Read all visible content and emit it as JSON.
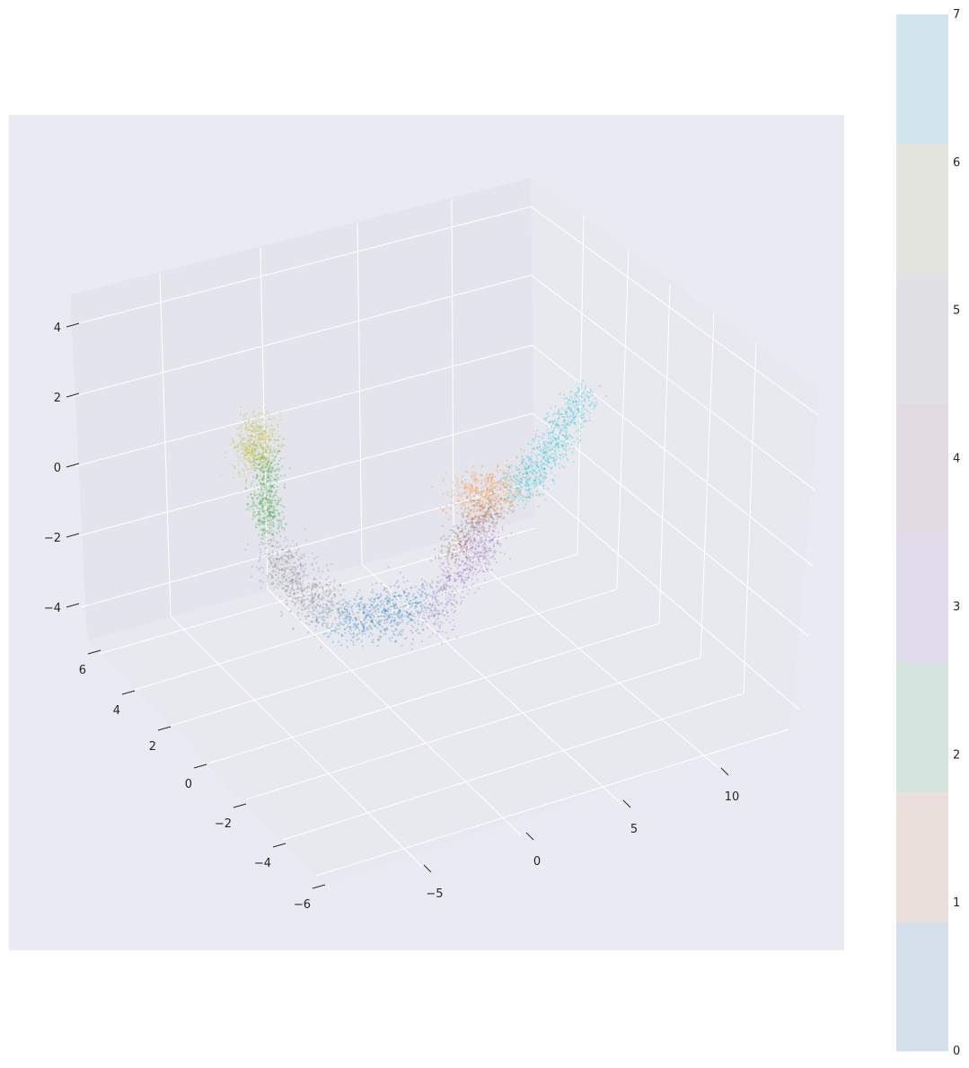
{
  "chart_data": {
    "type": "scatter",
    "projection": "3d",
    "title": "",
    "xlabel": "",
    "ylabel": "",
    "zlabel": "",
    "x_ticks": [
      -5,
      0,
      5,
      10
    ],
    "x_tick_labels": [
      "−5",
      "0",
      "5",
      "10"
    ],
    "y_ticks": [
      -6,
      -4,
      -2,
      0,
      2,
      4,
      6
    ],
    "y_tick_labels": [
      "−6",
      "−4",
      "−2",
      "0",
      "2",
      "4",
      "6"
    ],
    "z_ticks": [
      -4,
      -2,
      0,
      2,
      4
    ],
    "z_tick_labels": [
      "−4",
      "−2",
      "0",
      "2",
      "4"
    ],
    "grid": true,
    "point_opacity": 0.25,
    "colorbar": {
      "ticks": [
        0,
        1,
        2,
        3,
        4,
        5,
        6,
        7
      ],
      "tick_labels": [
        "0",
        "1",
        "2",
        "3",
        "4",
        "5",
        "6",
        "7"
      ],
      "range": [
        0,
        7
      ],
      "colors": [
        "#d5dfeb",
        "#ebdfdb",
        "#d5e4df",
        "#e0dcec",
        "#e2dae1",
        "#e1e1e5",
        "#e4e4de",
        "#d3e6ed"
      ]
    },
    "series": [
      {
        "color": "#1f77b4",
        "cluster": 0,
        "centroid": [
          -3.5,
          -1.5,
          -4.0
        ],
        "count": 60
      },
      {
        "color": "#ff7f0e",
        "cluster": 1,
        "centroid": [
          2.0,
          3.5,
          -1.2
        ],
        "count": 40
      },
      {
        "color": "#2ca02c",
        "cluster": 2,
        "centroid": [
          -6.5,
          -4.5,
          -1.5
        ],
        "count": 45
      },
      {
        "color": "#9467bd",
        "cluster": 3,
        "centroid": [
          -0.5,
          1.5,
          -4.0
        ],
        "count": 45
      },
      {
        "color": "#8c564b",
        "cluster": 4,
        "centroid": [
          0.5,
          2.0,
          -3.0
        ],
        "count": 30
      },
      {
        "color": "#7f7f7f",
        "cluster": 5,
        "centroid": [
          -6.0,
          -3.5,
          -4.0
        ],
        "count": 55
      },
      {
        "color": "#bcbd22",
        "cluster": 6,
        "centroid": [
          -7.0,
          -5.5,
          1.0
        ],
        "count": 45
      },
      {
        "color": "#17becf",
        "cluster": 7,
        "centroid": [
          4.5,
          4.0,
          0.5
        ],
        "count": 65
      }
    ]
  }
}
